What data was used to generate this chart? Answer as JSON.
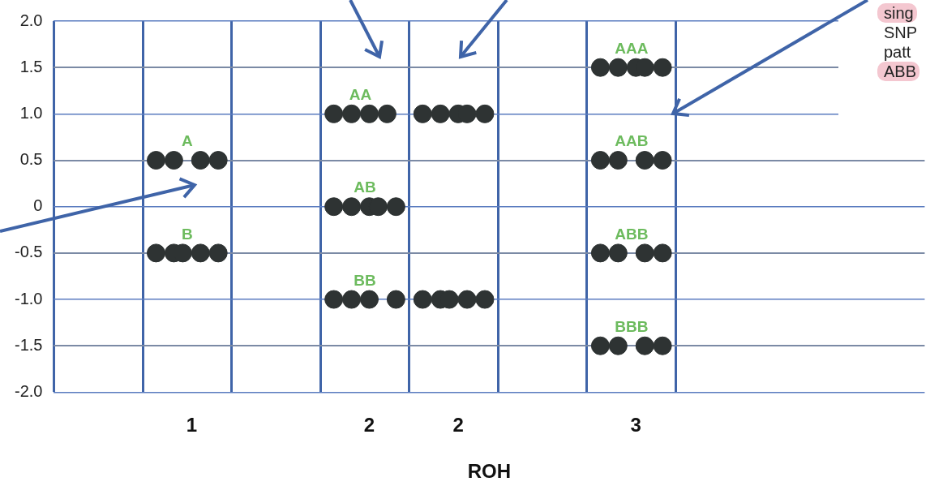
{
  "chart_data": {
    "type": "scatter",
    "xlabel": "ROH",
    "marker": "circle",
    "grid": true,
    "categories": [
      null,
      null,
      null,
      null,
      null,
      null,
      null,
      null,
      null,
      null,
      null,
      null,
      null,
      null,
      null,
      "1",
      null,
      null,
      null,
      null,
      null,
      null,
      null,
      null,
      null,
      null,
      null,
      null,
      null,
      null,
      null,
      null,
      null,
      null,
      null,
      "2",
      null,
      null,
      null,
      null,
      null,
      null,
      null,
      null,
      null,
      "2",
      null,
      null,
      null,
      null,
      null,
      null,
      null,
      null,
      null,
      null,
      null,
      null,
      null,
      null,
      null,
      null,
      null,
      null,
      null,
      "3",
      null,
      null,
      null,
      null,
      null,
      null,
      null,
      null,
      null,
      null,
      null,
      null,
      null,
      null,
      null,
      null,
      null,
      null,
      null,
      null,
      null,
      null,
      null,
      null,
      null,
      null,
      null,
      null,
      null,
      null,
      null,
      null
    ],
    "ylim": [
      -2,
      2
    ],
    "yticks": [
      {
        "value": -2,
        "label": "-2.0"
      },
      {
        "value": -1.5,
        "label": "-1.5"
      },
      {
        "value": -1,
        "label": "-1.0"
      },
      -0.5,
      0,
      0.5,
      {
        "value": 1,
        "label": "1.0"
      },
      1.5,
      {
        "value": 2,
        "label": "2.0"
      }
    ],
    "annotations": [
      "sing",
      "SNP",
      "patt",
      "ABB"
    ],
    "series": [
      {
        "name": "A",
        "color": "#2e3333",
        "values": [
          null,
          null,
          null,
          null,
          null,
          null,
          null,
          null,
          null,
          null,
          null,
          0.5,
          null,
          0.5,
          null,
          null,
          0.5,
          null,
          0.5,
          null,
          null,
          null,
          null,
          null,
          null,
          null,
          null,
          null,
          null,
          null,
          null,
          null,
          null,
          null,
          null,
          null,
          null,
          null,
          null,
          null,
          null,
          null,
          null,
          null,
          null,
          null,
          null,
          null,
          null,
          null,
          null,
          null,
          null,
          null,
          null,
          null,
          null,
          null,
          null,
          null,
          null,
          null,
          null,
          null,
          null,
          null,
          null,
          null,
          null,
          null,
          null,
          null,
          null,
          null,
          null,
          null,
          null,
          null,
          null,
          null,
          null,
          null,
          null,
          null,
          null,
          null,
          null,
          null,
          null,
          null,
          null,
          null,
          null,
          null,
          null,
          null,
          null,
          null
        ]
      },
      {
        "name": "B",
        "color": "#2e3333",
        "values": [
          null,
          null,
          null,
          null,
          null,
          null,
          null,
          null,
          null,
          null,
          null,
          -0.5,
          null,
          -0.5,
          -0.5,
          null,
          -0.5,
          null,
          -0.5,
          null,
          null,
          null,
          null,
          null,
          null,
          null,
          null,
          null,
          null,
          null,
          null,
          null,
          null,
          null,
          null,
          null,
          null,
          null,
          null,
          null,
          null,
          null,
          null,
          null,
          null,
          null,
          null,
          null,
          null,
          null,
          null,
          null,
          null,
          null,
          null,
          null,
          null,
          null,
          null,
          null,
          null,
          null,
          null,
          null,
          null,
          null,
          null,
          null,
          null,
          null,
          null,
          null,
          null,
          null,
          null,
          null,
          null,
          null,
          null,
          null,
          null,
          null,
          null,
          null,
          null,
          null,
          null,
          null,
          null,
          null,
          null,
          null,
          null,
          null,
          null,
          null,
          null,
          null
        ]
      },
      {
        "name": "AA",
        "color": "#2e3333",
        "values": [
          null,
          null,
          null,
          null,
          null,
          null,
          null,
          null,
          null,
          null,
          null,
          null,
          null,
          null,
          null,
          null,
          null,
          null,
          null,
          null,
          null,
          null,
          null,
          null,
          null,
          null,
          null,
          null,
          null,
          null,
          null,
          1,
          null,
          1,
          null,
          1,
          null,
          1,
          null,
          null,
          null,
          null,
          null,
          null,
          null,
          null,
          null,
          null,
          null,
          null,
          null,
          null,
          null,
          null,
          null,
          null,
          null,
          null,
          null,
          null,
          null,
          null,
          null,
          null,
          null,
          null,
          null,
          null,
          null,
          null,
          null,
          null,
          null,
          null,
          null,
          null,
          null,
          null,
          null,
          null,
          null,
          null,
          null,
          null,
          null,
          null,
          null,
          null,
          null,
          null,
          null,
          null,
          null,
          null,
          null,
          null,
          null,
          null
        ]
      },
      {
        "name": "AB",
        "color": "#2e3333",
        "values": [
          null,
          null,
          null,
          null,
          null,
          null,
          null,
          null,
          null,
          null,
          null,
          null,
          null,
          null,
          null,
          null,
          null,
          null,
          null,
          null,
          null,
          null,
          null,
          null,
          null,
          null,
          null,
          null,
          null,
          null,
          null,
          0,
          null,
          0,
          null,
          0,
          0,
          null,
          0,
          null,
          null,
          null,
          null,
          null,
          null,
          null,
          null,
          null,
          null,
          null,
          null,
          null,
          null,
          null,
          null,
          null,
          null,
          null,
          null,
          null,
          null,
          null,
          null,
          null,
          null,
          null,
          null,
          null,
          null,
          null,
          null,
          null,
          null,
          null,
          null,
          null,
          null,
          null,
          null,
          null,
          null,
          null,
          null,
          null,
          null,
          null,
          null,
          null,
          null,
          null,
          null,
          null,
          null,
          null,
          null,
          null,
          null,
          null
        ]
      },
      {
        "name": "BB",
        "color": "#2e3333",
        "values": [
          null,
          null,
          null,
          null,
          null,
          null,
          null,
          null,
          null,
          null,
          null,
          null,
          null,
          null,
          null,
          null,
          null,
          null,
          null,
          null,
          null,
          null,
          null,
          null,
          null,
          null,
          null,
          null,
          null,
          null,
          null,
          -1,
          null,
          -1,
          null,
          -1,
          null,
          null,
          -1,
          null,
          null,
          null,
          null,
          null,
          null,
          null,
          null,
          null,
          null,
          null,
          null,
          null,
          null,
          null,
          null,
          null,
          null,
          null,
          null,
          null,
          null,
          null,
          null,
          null,
          null,
          null,
          null,
          null,
          null,
          null,
          null,
          null,
          null,
          null,
          null,
          null,
          null,
          null,
          null,
          null,
          null,
          null,
          null,
          null,
          null,
          null,
          null,
          null,
          null,
          null,
          null,
          null,
          null,
          null,
          null,
          null,
          null,
          null
        ]
      },
      {
        "color": "#2e3333",
        "values": [
          null,
          null,
          null,
          null,
          null,
          null,
          null,
          null,
          null,
          null,
          null,
          null,
          null,
          null,
          null,
          null,
          null,
          null,
          null,
          null,
          null,
          null,
          null,
          null,
          null,
          null,
          null,
          null,
          null,
          null,
          null,
          null,
          null,
          null,
          null,
          null,
          null,
          null,
          null,
          null,
          null,
          1,
          null,
          1,
          null,
          1,
          1,
          null,
          1,
          null,
          null,
          null,
          null,
          null,
          null,
          null,
          null,
          null,
          null,
          null,
          null,
          null,
          null,
          null,
          null,
          null,
          null,
          null,
          null,
          null,
          null,
          null,
          null,
          null,
          null,
          null,
          null,
          null,
          null,
          null,
          null,
          null,
          null,
          null,
          null,
          null,
          null,
          null,
          null,
          null,
          null,
          null,
          null,
          null,
          null,
          null,
          null,
          null
        ]
      },
      {
        "color": "#2e3333",
        "values": [
          null,
          null,
          null,
          null,
          null,
          null,
          null,
          null,
          null,
          null,
          null,
          null,
          null,
          null,
          null,
          null,
          null,
          null,
          null,
          null,
          null,
          null,
          null,
          null,
          null,
          null,
          null,
          null,
          null,
          null,
          null,
          null,
          null,
          null,
          null,
          null,
          null,
          null,
          null,
          null,
          null,
          -1,
          null,
          -1,
          -1,
          null,
          -1,
          null,
          -1,
          null,
          null,
          null,
          null,
          null,
          null,
          null,
          null,
          null,
          null,
          null,
          null,
          null,
          null,
          null,
          null,
          null,
          null,
          null,
          null,
          null,
          null,
          null,
          null,
          null,
          null,
          null,
          null,
          null,
          null,
          null,
          null,
          null,
          null,
          null,
          null,
          null,
          null,
          null,
          null,
          null,
          null,
          null,
          null,
          null,
          null,
          null,
          null,
          null
        ]
      },
      {
        "name": "AAA",
        "color": "#2e3333",
        "values": [
          null,
          null,
          null,
          null,
          null,
          null,
          null,
          null,
          null,
          null,
          null,
          null,
          null,
          null,
          null,
          null,
          null,
          null,
          null,
          null,
          null,
          null,
          null,
          null,
          null,
          null,
          null,
          null,
          null,
          null,
          null,
          null,
          null,
          null,
          null,
          null,
          null,
          null,
          null,
          null,
          null,
          null,
          null,
          null,
          null,
          null,
          null,
          null,
          null,
          null,
          null,
          null,
          null,
          null,
          null,
          null,
          null,
          null,
          null,
          null,
          null,
          1.5,
          null,
          1.5,
          null,
          1.5,
          1.5,
          null,
          1.5,
          null,
          null,
          null,
          null,
          null,
          null,
          null,
          null,
          null,
          null,
          null,
          null,
          null,
          null,
          null,
          null,
          null,
          null,
          null,
          null,
          null,
          null,
          null,
          null,
          null,
          null,
          null,
          null,
          null
        ]
      },
      {
        "name": "AAB",
        "color": "#2e3333",
        "values": [
          null,
          null,
          null,
          null,
          null,
          null,
          null,
          null,
          null,
          null,
          null,
          null,
          null,
          null,
          null,
          null,
          null,
          null,
          null,
          null,
          null,
          null,
          null,
          null,
          null,
          null,
          null,
          null,
          null,
          null,
          null,
          null,
          null,
          null,
          null,
          null,
          null,
          null,
          null,
          null,
          null,
          null,
          null,
          null,
          null,
          null,
          null,
          null,
          null,
          null,
          null,
          null,
          null,
          null,
          null,
          null,
          null,
          null,
          null,
          null,
          null,
          0.5,
          null,
          0.5,
          null,
          null,
          0.5,
          null,
          0.5,
          null,
          null,
          null,
          null,
          null,
          null,
          null,
          null,
          null,
          null,
          null,
          null,
          null,
          null,
          null,
          null,
          null,
          null,
          null,
          null,
          null,
          null,
          null,
          null,
          null,
          null,
          null,
          null,
          null
        ]
      },
      {
        "name": "ABB",
        "color": "#2e3333",
        "values": [
          null,
          null,
          null,
          null,
          null,
          null,
          null,
          null,
          null,
          null,
          null,
          null,
          null,
          null,
          null,
          null,
          null,
          null,
          null,
          null,
          null,
          null,
          null,
          null,
          null,
          null,
          null,
          null,
          null,
          null,
          null,
          null,
          null,
          null,
          null,
          null,
          null,
          null,
          null,
          null,
          null,
          null,
          null,
          null,
          null,
          null,
          null,
          null,
          null,
          null,
          null,
          null,
          null,
          null,
          null,
          null,
          null,
          null,
          null,
          null,
          null,
          -0.5,
          null,
          -0.5,
          null,
          null,
          -0.5,
          null,
          -0.5,
          null,
          null,
          null,
          null,
          null,
          null,
          null,
          null,
          null,
          null,
          null,
          null,
          null,
          null,
          null,
          null,
          null,
          null,
          null,
          null,
          null,
          null,
          null,
          null,
          null,
          null,
          null,
          null,
          null
        ]
      },
      {
        "name": "BBB",
        "color": "#2e3333",
        "values": [
          null,
          null,
          null,
          null,
          null,
          null,
          null,
          null,
          null,
          null,
          null,
          null,
          null,
          null,
          null,
          null,
          null,
          null,
          null,
          null,
          null,
          null,
          null,
          null,
          null,
          null,
          null,
          null,
          null,
          null,
          null,
          null,
          null,
          null,
          null,
          null,
          null,
          null,
          null,
          null,
          null,
          null,
          null,
          null,
          null,
          null,
          null,
          null,
          null,
          null,
          null,
          null,
          null,
          null,
          null,
          null,
          null,
          null,
          null,
          null,
          null,
          -1.5,
          null,
          -1.5,
          null,
          null,
          -1.5,
          null,
          -1.5,
          null,
          null,
          null,
          null,
          null,
          null,
          null,
          null,
          null,
          null,
          null,
          null,
          null,
          null,
          null,
          null,
          null,
          null,
          null,
          null,
          null,
          null,
          null,
          null,
          null,
          null,
          null,
          null,
          null
        ]
      }
    ]
  }
}
